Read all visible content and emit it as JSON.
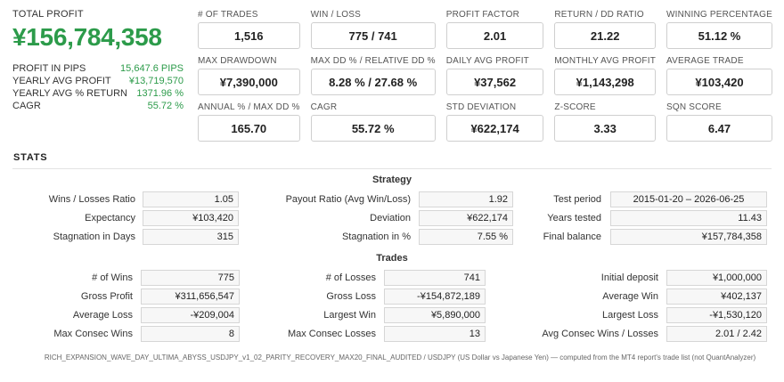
{
  "summary": {
    "total_profit_label": "TOTAL PROFIT",
    "total_profit_value": "¥156,784,358",
    "items": [
      {
        "label": "PROFIT IN PIPS",
        "value": "15,647.6 PIPS"
      },
      {
        "label": "YEARLY AVG PROFIT",
        "value": "¥13,719,570"
      },
      {
        "label": "YEARLY AVG % RETURN",
        "value": "1371.96 %"
      },
      {
        "label": "CAGR",
        "value": "55.72 %"
      }
    ]
  },
  "cards": [
    {
      "label": "# OF TRADES",
      "value": "1,516"
    },
    {
      "label": "WIN / LOSS",
      "value": "775 / 741"
    },
    {
      "label": "PROFIT FACTOR",
      "value": "2.01"
    },
    {
      "label": "RETURN / DD RATIO",
      "value": "21.22"
    },
    {
      "label": "WINNING PERCENTAGE",
      "value": "51.12 %"
    },
    {
      "label": "MAX DRAWDOWN",
      "value": "¥7,390,000"
    },
    {
      "label": "MAX DD % / RELATIVE DD %",
      "value": "8.28 % / 27.68 %"
    },
    {
      "label": "DAILY AVG PROFIT",
      "value": "¥37,562"
    },
    {
      "label": "MONTHLY AVG PROFIT",
      "value": "¥1,143,298"
    },
    {
      "label": "AVERAGE TRADE",
      "value": "¥103,420"
    },
    {
      "label": "ANNUAL % / MAX DD %",
      "value": "165.70"
    },
    {
      "label": "CAGR",
      "value": "55.72 %"
    },
    {
      "label": "STD DEVIATION",
      "value": "¥622,174"
    },
    {
      "label": "Z-SCORE",
      "value": "3.33"
    },
    {
      "label": "SQN SCORE",
      "value": "6.47"
    }
  ],
  "stats": {
    "title": "STATS",
    "strategy": {
      "title": "Strategy",
      "col1": [
        {
          "label": "Wins / Losses Ratio",
          "value": "1.05"
        },
        {
          "label": "Expectancy",
          "value": "¥103,420"
        },
        {
          "label": "Stagnation in Days",
          "value": "315"
        }
      ],
      "col2": [
        {
          "label": "Payout Ratio (Avg Win/Loss)",
          "value": "1.92"
        },
        {
          "label": "Deviation",
          "value": "¥622,174"
        },
        {
          "label": "Stagnation in %",
          "value": "7.55 %"
        }
      ],
      "col3": [
        {
          "label": "Test period",
          "value": "2015-01-20 – 2026-06-25"
        },
        {
          "label": "Years tested",
          "value": "11.43"
        },
        {
          "label": "Final balance",
          "value": "¥157,784,358"
        }
      ]
    },
    "trades": {
      "title": "Trades",
      "col1": [
        {
          "label": "# of Wins",
          "value": "775"
        },
        {
          "label": "Gross Profit",
          "value": "¥311,656,547"
        },
        {
          "label": "Average Loss",
          "value": "-¥209,004"
        },
        {
          "label": "Max Consec Wins",
          "value": "8"
        }
      ],
      "col2": [
        {
          "label": "# of Losses",
          "value": "741"
        },
        {
          "label": "Gross Loss",
          "value": "-¥154,872,189"
        },
        {
          "label": "Largest Win",
          "value": "¥5,890,000"
        },
        {
          "label": "Max Consec Losses",
          "value": "13"
        }
      ],
      "col3": [
        {
          "label": "Initial deposit",
          "value": "¥1,000,000"
        },
        {
          "label": "Average Win",
          "value": "¥402,137"
        },
        {
          "label": "Largest Loss",
          "value": "-¥1,530,120"
        },
        {
          "label": "Avg Consec Wins / Losses",
          "value": "2.01 / 2.42"
        }
      ]
    }
  },
  "footer": "RICH_EXPANSION_WAVE_DAY_ULTIMA_ABYSS_USDJPY_v1_02_PARITY_RECOVERY_MAX20_FINAL_AUDITED / USDJPY (US Dollar vs Japanese Yen) — computed from the MT4 report's trade list (not QuantAnalyzer)",
  "colors": {
    "accent_green": "#2c9b4a"
  }
}
